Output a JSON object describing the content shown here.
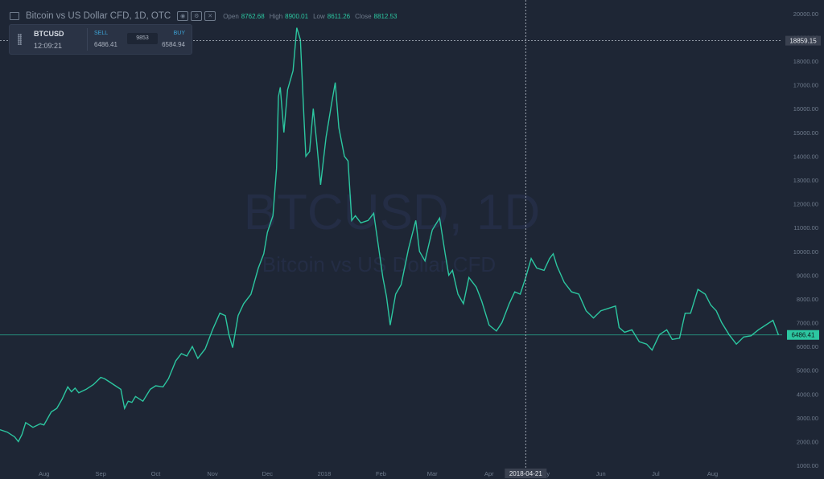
{
  "header": {
    "title": "Bitcoin vs US Dollar CFD, 1D, OTC",
    "open_label": "Open",
    "open_value": "8762.68",
    "high_label": "High",
    "high_value": "8900.01",
    "low_label": "Low",
    "low_value": "8611.26",
    "close_label": "Close",
    "close_value": "8812.53"
  },
  "quote_panel": {
    "symbol": "BTCUSD",
    "time": "12:09:21",
    "sell_label": "SELL",
    "sell_value": "6486.41",
    "spread": "9853",
    "buy_label": "BUY",
    "buy_value": "6584.94"
  },
  "watermark": {
    "symbol": "BTCUSD, 1D",
    "name": "Bitcoin vs US Dollar CFD"
  },
  "colors": {
    "background": "#1e2635",
    "line": "#2cc6a0",
    "axis_text": "#6f7b8c",
    "crosshair": "#b9c0cb",
    "badge_price": "#2cc6a0"
  },
  "chart_data": {
    "type": "line",
    "ylim": [
      800,
      20300
    ],
    "xlim": [
      "2017-07-08",
      "2018-09-08"
    ],
    "yticks": [
      1000,
      2000,
      3000,
      4000,
      5000,
      6000,
      7000,
      8000,
      9000,
      10000,
      11000,
      12000,
      13000,
      14000,
      15000,
      16000,
      17000,
      18000,
      19000,
      20000
    ],
    "ytick_labels": [
      "1000.00",
      "2000.00",
      "3000.00",
      "4000.00",
      "5000.00",
      "6000.00",
      "7000.00",
      "8000.00",
      "9000.00",
      "10000.00",
      "11000.00",
      "12000.00",
      "13000.00",
      "14000.00",
      "15000.00",
      "16000.00",
      "17000.00",
      "18000.00",
      "19000.00",
      "20000.00"
    ],
    "xticks": [
      {
        "date": "2017-08-01",
        "label": "Aug"
      },
      {
        "date": "2017-09-01",
        "label": "Sep"
      },
      {
        "date": "2017-10-01",
        "label": "Oct"
      },
      {
        "date": "2017-11-01",
        "label": "Nov"
      },
      {
        "date": "2017-12-01",
        "label": "Dec"
      },
      {
        "date": "2018-01-01",
        "label": "2018"
      },
      {
        "date": "2018-02-01",
        "label": "Feb"
      },
      {
        "date": "2018-03-01",
        "label": "Mar"
      },
      {
        "date": "2018-04-01",
        "label": "Apr"
      },
      {
        "date": "2018-05-01",
        "label": "May"
      },
      {
        "date": "2018-06-01",
        "label": "Jun"
      },
      {
        "date": "2018-07-01",
        "label": "Jul"
      },
      {
        "date": "2018-08-01",
        "label": "Aug"
      }
    ],
    "crosshair": {
      "date": "2018-04-21",
      "date_label": "2018-04-21",
      "price": 18859.15,
      "price_label": "18859.15"
    },
    "last_price": {
      "value": 6486.41,
      "label": "6486.41"
    },
    "series": [
      {
        "points": [
          [
            "2017-07-08",
            2500
          ],
          [
            "2017-07-12",
            2400
          ],
          [
            "2017-07-16",
            2200
          ],
          [
            "2017-07-18",
            2000
          ],
          [
            "2017-07-20",
            2300
          ],
          [
            "2017-07-22",
            2800
          ],
          [
            "2017-07-26",
            2600
          ],
          [
            "2017-07-30",
            2750
          ],
          [
            "2017-08-01",
            2700
          ],
          [
            "2017-08-05",
            3250
          ],
          [
            "2017-08-08",
            3400
          ],
          [
            "2017-08-11",
            3800
          ],
          [
            "2017-08-14",
            4300
          ],
          [
            "2017-08-16",
            4100
          ],
          [
            "2017-08-18",
            4250
          ],
          [
            "2017-08-20",
            4050
          ],
          [
            "2017-08-24",
            4200
          ],
          [
            "2017-08-28",
            4400
          ],
          [
            "2017-09-01",
            4700
          ],
          [
            "2017-09-03",
            4650
          ],
          [
            "2017-09-06",
            4500
          ],
          [
            "2017-09-09",
            4350
          ],
          [
            "2017-09-12",
            4200
          ],
          [
            "2017-09-14",
            3400
          ],
          [
            "2017-09-16",
            3700
          ],
          [
            "2017-09-18",
            3650
          ],
          [
            "2017-09-20",
            3900
          ],
          [
            "2017-09-24",
            3700
          ],
          [
            "2017-09-28",
            4200
          ],
          [
            "2017-10-01",
            4350
          ],
          [
            "2017-10-05",
            4300
          ],
          [
            "2017-10-08",
            4650
          ],
          [
            "2017-10-12",
            5400
          ],
          [
            "2017-10-15",
            5700
          ],
          [
            "2017-10-18",
            5600
          ],
          [
            "2017-10-21",
            6000
          ],
          [
            "2017-10-24",
            5500
          ],
          [
            "2017-10-28",
            5900
          ],
          [
            "2017-11-01",
            6700
          ],
          [
            "2017-11-05",
            7400
          ],
          [
            "2017-11-08",
            7300
          ],
          [
            "2017-11-10",
            6500
          ],
          [
            "2017-11-12",
            5950
          ],
          [
            "2017-11-15",
            7300
          ],
          [
            "2017-11-18",
            7800
          ],
          [
            "2017-11-22",
            8200
          ],
          [
            "2017-11-26",
            9300
          ],
          [
            "2017-11-29",
            9900
          ],
          [
            "2017-12-01",
            10800
          ],
          [
            "2017-12-04",
            11500
          ],
          [
            "2017-12-06",
            13500
          ],
          [
            "2017-12-07",
            16500
          ],
          [
            "2017-12-08",
            16900
          ],
          [
            "2017-12-10",
            15000
          ],
          [
            "2017-12-12",
            16800
          ],
          [
            "2017-12-15",
            17600
          ],
          [
            "2017-12-17",
            19400
          ],
          [
            "2017-12-19",
            18900
          ],
          [
            "2017-12-21",
            15500
          ],
          [
            "2017-12-22",
            14000
          ],
          [
            "2017-12-24",
            14200
          ],
          [
            "2017-12-26",
            16000
          ],
          [
            "2017-12-28",
            14500
          ],
          [
            "2017-12-30",
            12800
          ],
          [
            "2018-01-02",
            14800
          ],
          [
            "2018-01-05",
            16200
          ],
          [
            "2018-01-07",
            17100
          ],
          [
            "2018-01-09",
            15200
          ],
          [
            "2018-01-12",
            14000
          ],
          [
            "2018-01-14",
            13800
          ],
          [
            "2018-01-16",
            11300
          ],
          [
            "2018-01-18",
            11500
          ],
          [
            "2018-01-21",
            11200
          ],
          [
            "2018-01-25",
            11300
          ],
          [
            "2018-01-28",
            11600
          ],
          [
            "2018-01-31",
            10000
          ],
          [
            "2018-02-02",
            8900
          ],
          [
            "2018-02-04",
            8100
          ],
          [
            "2018-02-06",
            6900
          ],
          [
            "2018-02-09",
            8200
          ],
          [
            "2018-02-12",
            8600
          ],
          [
            "2018-02-16",
            10100
          ],
          [
            "2018-02-20",
            11300
          ],
          [
            "2018-02-22",
            10000
          ],
          [
            "2018-02-25",
            9600
          ],
          [
            "2018-03-01",
            10900
          ],
          [
            "2018-03-05",
            11400
          ],
          [
            "2018-03-08",
            9900
          ],
          [
            "2018-03-10",
            9000
          ],
          [
            "2018-03-12",
            9200
          ],
          [
            "2018-03-15",
            8200
          ],
          [
            "2018-03-18",
            7800
          ],
          [
            "2018-03-21",
            8900
          ],
          [
            "2018-03-25",
            8500
          ],
          [
            "2018-03-28",
            7900
          ],
          [
            "2018-04-01",
            6900
          ],
          [
            "2018-04-05",
            6650
          ],
          [
            "2018-04-08",
            7000
          ],
          [
            "2018-04-12",
            7800
          ],
          [
            "2018-04-15",
            8300
          ],
          [
            "2018-04-18",
            8200
          ],
          [
            "2018-04-21",
            8900
          ],
          [
            "2018-04-24",
            9700
          ],
          [
            "2018-04-27",
            9300
          ],
          [
            "2018-05-01",
            9200
          ],
          [
            "2018-05-04",
            9700
          ],
          [
            "2018-05-06",
            9900
          ],
          [
            "2018-05-08",
            9400
          ],
          [
            "2018-05-12",
            8700
          ],
          [
            "2018-05-16",
            8300
          ],
          [
            "2018-05-20",
            8200
          ],
          [
            "2018-05-24",
            7500
          ],
          [
            "2018-05-28",
            7200
          ],
          [
            "2018-06-01",
            7500
          ],
          [
            "2018-06-05",
            7600
          ],
          [
            "2018-06-09",
            7700
          ],
          [
            "2018-06-11",
            6800
          ],
          [
            "2018-06-14",
            6600
          ],
          [
            "2018-06-18",
            6700
          ],
          [
            "2018-06-22",
            6200
          ],
          [
            "2018-06-26",
            6100
          ],
          [
            "2018-06-29",
            5850
          ],
          [
            "2018-07-03",
            6500
          ],
          [
            "2018-07-07",
            6700
          ],
          [
            "2018-07-10",
            6300
          ],
          [
            "2018-07-14",
            6350
          ],
          [
            "2018-07-17",
            7400
          ],
          [
            "2018-07-20",
            7400
          ],
          [
            "2018-07-24",
            8400
          ],
          [
            "2018-07-28",
            8200
          ],
          [
            "2018-07-31",
            7750
          ],
          [
            "2018-08-03",
            7500
          ],
          [
            "2018-08-06",
            7000
          ],
          [
            "2018-08-10",
            6500
          ],
          [
            "2018-08-14",
            6100
          ],
          [
            "2018-08-18",
            6400
          ],
          [
            "2018-08-22",
            6450
          ],
          [
            "2018-08-26",
            6700
          ],
          [
            "2018-08-30",
            6900
          ],
          [
            "2018-09-03",
            7100
          ],
          [
            "2018-09-06",
            6486
          ]
        ]
      }
    ]
  }
}
